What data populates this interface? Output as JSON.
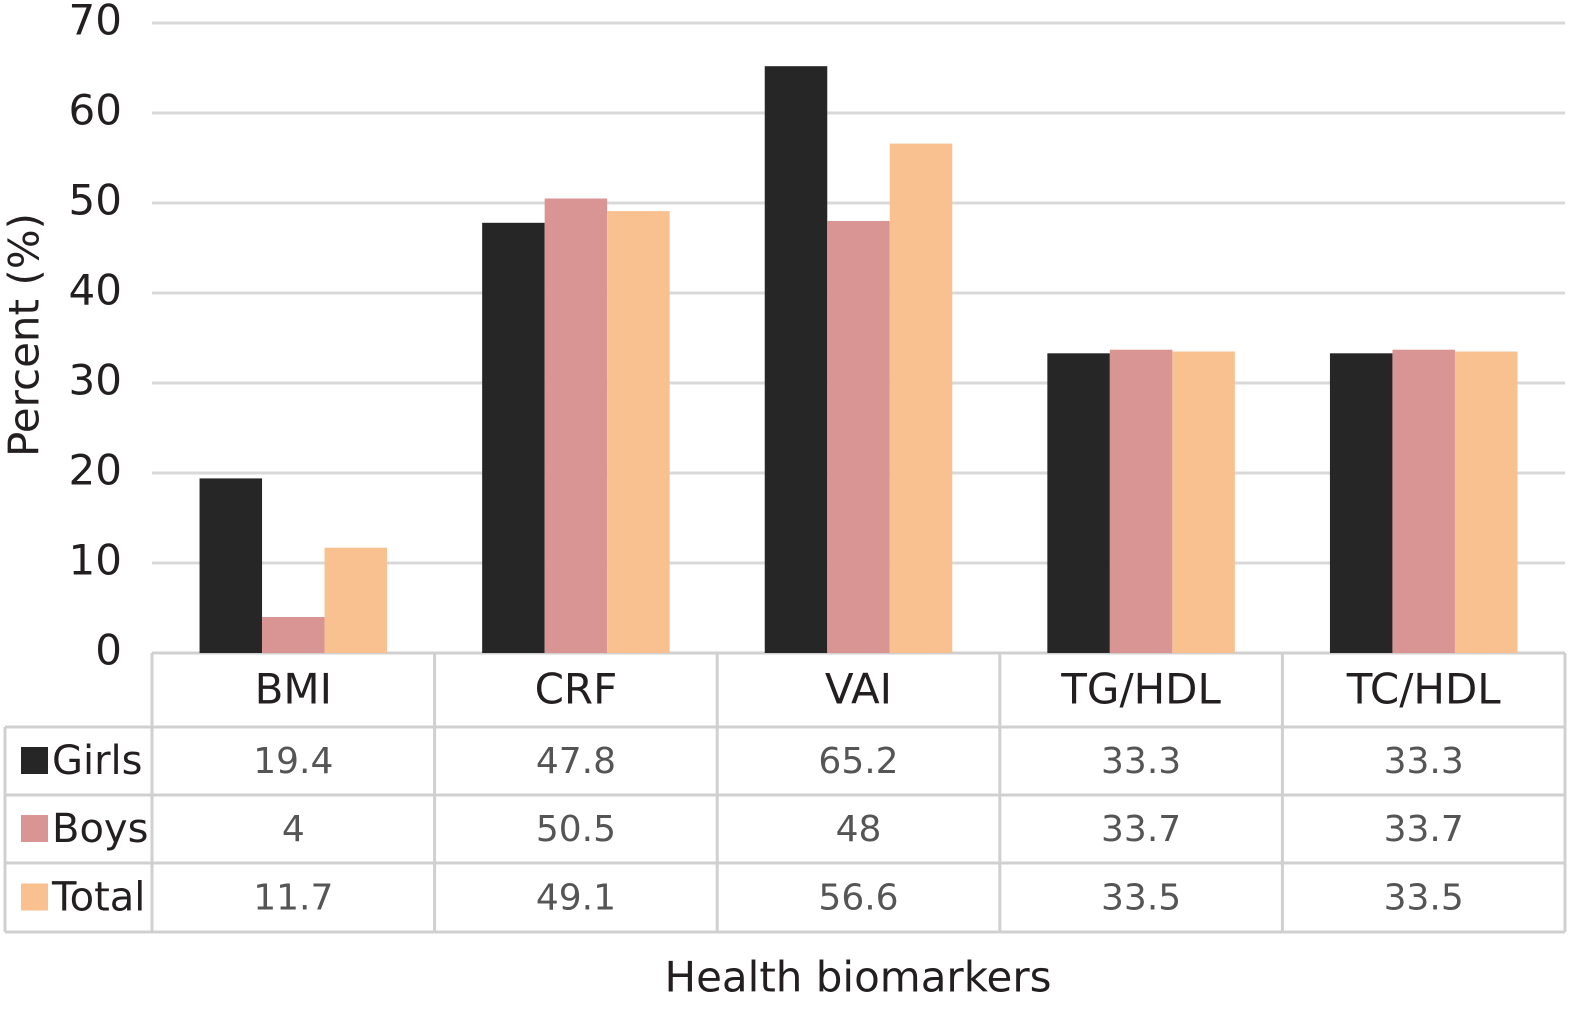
{
  "chart_data": {
    "type": "bar",
    "x_label": "Health biomarkers",
    "y_label": "Percent (%)",
    "categories": [
      "BMI",
      "CRF",
      "VAI",
      "TG/HDL",
      "TC/HDL"
    ],
    "series": [
      {
        "name": "Girls",
        "color": "#262626",
        "values": [
          19.4,
          47.8,
          65.2,
          33.3,
          33.3
        ]
      },
      {
        "name": "Boys",
        "color": "#d99594",
        "values": [
          4,
          50.5,
          48,
          33.7,
          33.7
        ]
      },
      {
        "name": "Total",
        "color": "#f9c090",
        "values": [
          11.7,
          49.1,
          56.6,
          33.5,
          33.5
        ]
      }
    ],
    "ylim": [
      0,
      70
    ],
    "yticks": [
      0,
      10,
      20,
      30,
      40,
      50,
      60,
      70
    ],
    "grid": true
  }
}
